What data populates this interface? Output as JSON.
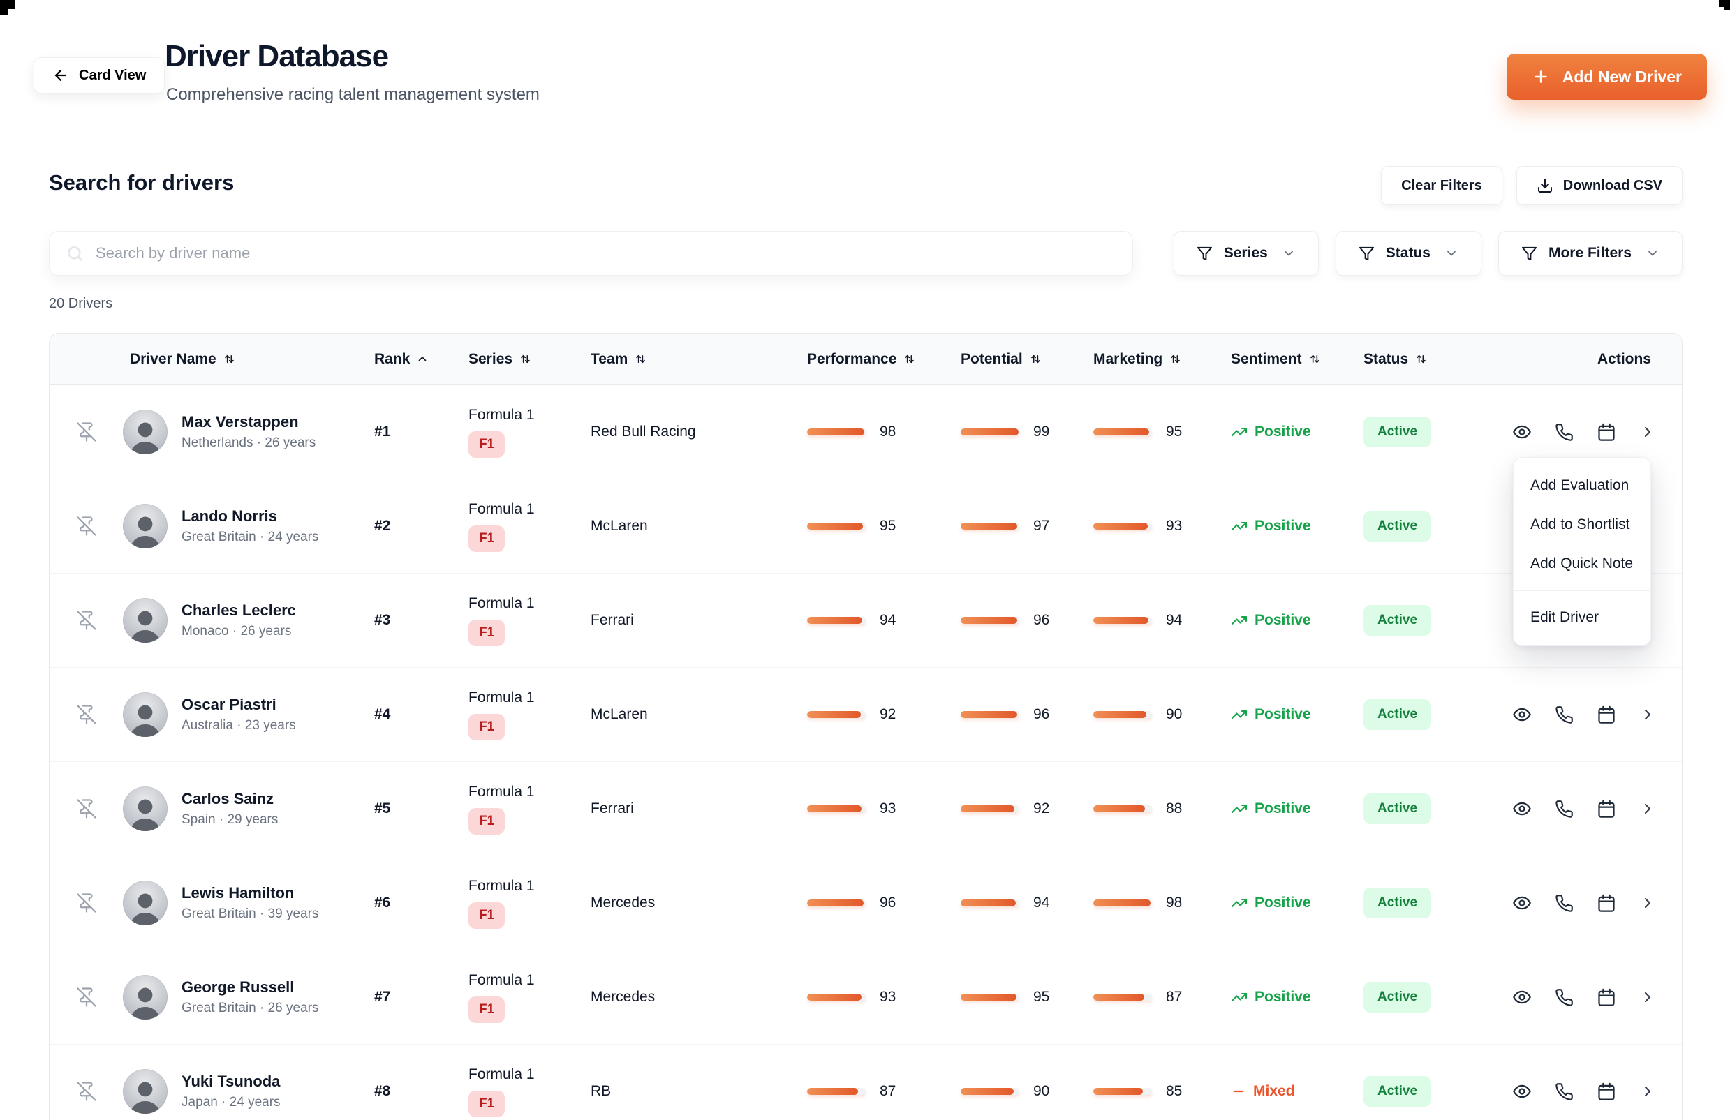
{
  "header": {
    "back_label": "Card View",
    "title": "Driver Database",
    "subtitle": "Comprehensive racing talent management system",
    "add_button": "Add New Driver"
  },
  "toolbar": {
    "section_title": "Search for drivers",
    "clear_filters": "Clear Filters",
    "download_csv": "Download CSV",
    "search_placeholder": "Search by driver name",
    "filters": [
      {
        "label": "Series"
      },
      {
        "label": "Status"
      },
      {
        "label": "More Filters"
      }
    ],
    "results_count": "20 Drivers"
  },
  "table": {
    "columns": [
      {
        "label": "Driver Name",
        "sort": "both"
      },
      {
        "label": "Rank",
        "sort": "asc"
      },
      {
        "label": "Series",
        "sort": "both"
      },
      {
        "label": "Team",
        "sort": "both"
      },
      {
        "label": "Performance",
        "sort": "both"
      },
      {
        "label": "Potential",
        "sort": "both"
      },
      {
        "label": "Marketing",
        "sort": "both"
      },
      {
        "label": "Sentiment",
        "sort": "both"
      },
      {
        "label": "Status",
        "sort": "both"
      },
      {
        "label": "Actions",
        "sort": "none"
      }
    ],
    "rows": [
      {
        "name": "Max Verstappen",
        "meta": "Netherlands · 26 years",
        "rank": "#1",
        "series": "Formula 1",
        "series_badge": "F1",
        "team": "Red Bull Racing",
        "performance": 98,
        "potential": 99,
        "marketing": 95,
        "sentiment": "Positive",
        "status": "Active"
      },
      {
        "name": "Lando Norris",
        "meta": "Great Britain · 24 years",
        "rank": "#2",
        "series": "Formula 1",
        "series_badge": "F1",
        "team": "McLaren",
        "performance": 95,
        "potential": 97,
        "marketing": 93,
        "sentiment": "Positive",
        "status": "Active"
      },
      {
        "name": "Charles Leclerc",
        "meta": "Monaco · 26 years",
        "rank": "#3",
        "series": "Formula 1",
        "series_badge": "F1",
        "team": "Ferrari",
        "performance": 94,
        "potential": 96,
        "marketing": 94,
        "sentiment": "Positive",
        "status": "Active"
      },
      {
        "name": "Oscar Piastri",
        "meta": "Australia · 23 years",
        "rank": "#4",
        "series": "Formula 1",
        "series_badge": "F1",
        "team": "McLaren",
        "performance": 92,
        "potential": 96,
        "marketing": 90,
        "sentiment": "Positive",
        "status": "Active"
      },
      {
        "name": "Carlos Sainz",
        "meta": "Spain · 29 years",
        "rank": "#5",
        "series": "Formula 1",
        "series_badge": "F1",
        "team": "Ferrari",
        "performance": 93,
        "potential": 92,
        "marketing": 88,
        "sentiment": "Positive",
        "status": "Active"
      },
      {
        "name": "Lewis Hamilton",
        "meta": "Great Britain · 39 years",
        "rank": "#6",
        "series": "Formula 1",
        "series_badge": "F1",
        "team": "Mercedes",
        "performance": 96,
        "potential": 94,
        "marketing": 98,
        "sentiment": "Positive",
        "status": "Active"
      },
      {
        "name": "George Russell",
        "meta": "Great Britain · 26 years",
        "rank": "#7",
        "series": "Formula 1",
        "series_badge": "F1",
        "team": "Mercedes",
        "performance": 93,
        "potential": 95,
        "marketing": 87,
        "sentiment": "Positive",
        "status": "Active"
      },
      {
        "name": "Yuki Tsunoda",
        "meta": "Japan · 24 years",
        "rank": "#8",
        "series": "Formula 1",
        "series_badge": "F1",
        "team": "RB",
        "performance": 87,
        "potential": 90,
        "marketing": 85,
        "sentiment": "Mixed",
        "status": "Active"
      }
    ]
  },
  "context_menu": {
    "items": [
      "Add Evaluation",
      "Add to Shortlist",
      "Add Quick Note"
    ],
    "separated_item": "Edit Driver"
  },
  "colors": {
    "accent_orange": "#e9602c",
    "bar_gradient_start": "#f09055",
    "bar_gradient_end": "#e2582a",
    "f1_badge_bg": "#fbd7d8",
    "f1_badge_text": "#b91c1c",
    "active_badge_bg": "#dcfce7",
    "active_badge_text": "#15803d",
    "sentiment_positive": "#16a34a",
    "sentiment_mixed": "#e8562d"
  }
}
